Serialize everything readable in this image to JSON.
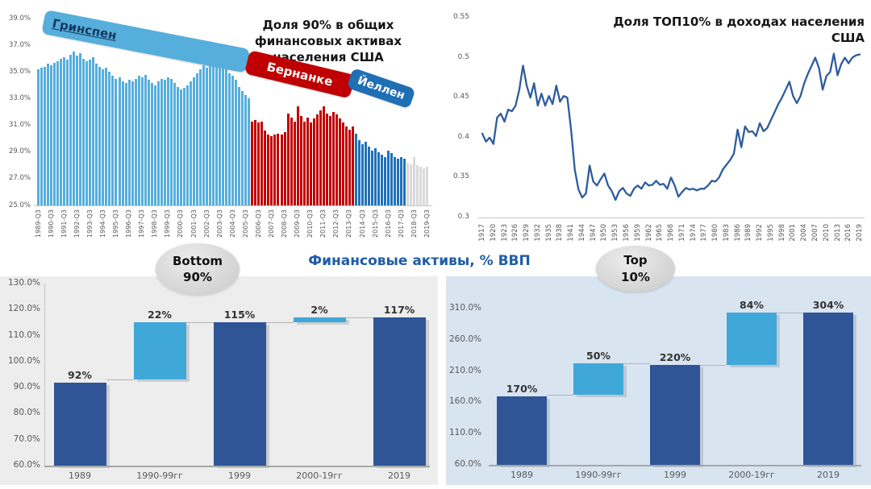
{
  "top_left": {
    "title": "Доля 90% в общих финансовых активах населения США",
    "ribbon": {
      "greenspan": "Гринспен",
      "bernanke": "Бернанке",
      "yellen": "Йеллен"
    }
  },
  "top_right": {
    "title": "Доля ТОП10% в доходах населения США"
  },
  "bottom": {
    "title": "Финансовые активы, % ВВП",
    "title_color": "#1F5CA8",
    "left_badge": {
      "line1": "Bottom",
      "line2": "90%"
    },
    "right_badge": {
      "line1": "Top",
      "line2": "10%"
    }
  },
  "colors": {
    "greenspan_bar": "#56AEDC",
    "bernanke_bar": "#C00000",
    "yellen_bar": "#1F72B8",
    "no_chair_bar": "#D9D9D9",
    "income_line": "#2E5C9E",
    "waterfall_dark": "#2F5597",
    "waterfall_light": "#3FA8D9",
    "left_panel_bg": "#EDEDED",
    "right_panel_bg": "#D9E4F1",
    "tick_text": "#595959",
    "axis_line": "#c8c8c8"
  },
  "chart_data": [
    {
      "id": "bottom90-share-of-assets",
      "type": "bar",
      "title": "Доля 90% в общих финансовых активах населения США",
      "x_first": "1989-Q3",
      "x_last": "2019-Q3",
      "x_unit": "quarter",
      "ylim": [
        25,
        39
      ],
      "yticks": [
        "25.0%",
        "27.0%",
        "29.0%",
        "31.0%",
        "33.0%",
        "35.0%",
        "37.0%",
        "39.0%"
      ],
      "xticks": [
        "1989-Q3",
        "1990-Q3",
        "1991-Q3",
        "1992-Q3",
        "1993-Q3",
        "1994-Q3",
        "1995-Q3",
        "1996-Q3",
        "1997-Q3",
        "1998-Q3",
        "1999-Q3",
        "2000-Q3",
        "2001-Q3",
        "2002-Q3",
        "2003-Q3",
        "2004-Q3",
        "2005-Q3",
        "2006-Q3",
        "2007-Q3",
        "2008-Q3",
        "2009-Q3",
        "2010-Q3",
        "2011-Q3",
        "2012-Q3",
        "2013-Q3",
        "2014-Q3",
        "2015-Q3",
        "2016-Q3",
        "2017-Q3",
        "2018-Q3",
        "2019-Q3"
      ],
      "xtick_every": 4,
      "eras": [
        {
          "label": "Гринспен",
          "count": 66,
          "color": "#56AEDC"
        },
        {
          "label": "Бернанке",
          "count": 32,
          "color": "#C00000"
        },
        {
          "label": "Йеллен",
          "count": 16,
          "color": "#1F72B8"
        },
        {
          "label": "",
          "count": 7,
          "color": "#D9D9D9"
        }
      ],
      "values": [
        35.2,
        35.3,
        35.4,
        35.6,
        35.5,
        35.7,
        35.8,
        36.0,
        36.1,
        35.9,
        36.3,
        36.5,
        36.2,
        36.4,
        36.0,
        35.8,
        35.9,
        36.1,
        35.6,
        35.4,
        35.2,
        35.3,
        35.0,
        34.7,
        34.5,
        34.6,
        34.3,
        34.2,
        34.4,
        34.3,
        34.5,
        34.7,
        34.6,
        34.8,
        34.4,
        34.2,
        34.0,
        34.3,
        34.5,
        34.4,
        34.6,
        34.5,
        34.2,
        33.9,
        33.7,
        33.8,
        34.0,
        34.3,
        34.6,
        34.9,
        35.2,
        35.5,
        35.3,
        35.6,
        35.9,
        36.1,
        35.8,
        35.5,
        35.2,
        34.9,
        34.7,
        34.4,
        33.9,
        33.6,
        33.3,
        33.0,
        31.3,
        31.4,
        31.2,
        31.3,
        30.6,
        30.3,
        30.2,
        30.3,
        30.4,
        30.3,
        30.5,
        31.9,
        31.6,
        31.3,
        32.4,
        31.7,
        31.3,
        31.6,
        31.2,
        31.5,
        31.8,
        32.1,
        32.4,
        31.9,
        31.7,
        32.0,
        31.8,
        31.5,
        31.2,
        30.9,
        30.7,
        30.9,
        30.4,
        29.9,
        29.6,
        29.8,
        29.4,
        29.1,
        29.3,
        29.0,
        28.8,
        28.6,
        29.1,
        28.9,
        28.6,
        28.5,
        28.6,
        28.5,
        28.2,
        28.1,
        28.6,
        28.0,
        27.9,
        27.8,
        27.9
      ]
    },
    {
      "id": "top10-share-of-income",
      "type": "line",
      "title": "Доля ТОП10% в доходах населения США",
      "x_start": 1917,
      "x_step": 1,
      "ylim": [
        0.3,
        0.55
      ],
      "yticks": [
        "0.3",
        "0.35",
        "0.4",
        "0.45",
        "0.5",
        "0.55"
      ],
      "xticks": [
        "1917",
        "1920",
        "1923",
        "1926",
        "1929",
        "1932",
        "1935",
        "1938",
        "1941",
        "1944",
        "1947",
        "1950",
        "1953",
        "1956",
        "1959",
        "1962",
        "1965",
        "1968",
        "1971",
        "1974",
        "1977",
        "1980",
        "1983",
        "1986",
        "1989",
        "1992",
        "1995",
        "1998",
        "2001",
        "2004",
        "2007",
        "2010",
        "2013",
        "2016",
        "2019"
      ],
      "xtick_every": 3,
      "line_color": "#2E5C9E",
      "values": [
        0.405,
        0.395,
        0.4,
        0.392,
        0.425,
        0.43,
        0.42,
        0.435,
        0.433,
        0.44,
        0.46,
        0.49,
        0.465,
        0.45,
        0.468,
        0.44,
        0.455,
        0.44,
        0.452,
        0.442,
        0.465,
        0.445,
        0.452,
        0.45,
        0.41,
        0.36,
        0.335,
        0.325,
        0.33,
        0.365,
        0.345,
        0.34,
        0.348,
        0.355,
        0.34,
        0.333,
        0.322,
        0.333,
        0.337,
        0.33,
        0.327,
        0.336,
        0.34,
        0.336,
        0.344,
        0.34,
        0.341,
        0.346,
        0.341,
        0.342,
        0.336,
        0.35,
        0.34,
        0.326,
        0.332,
        0.337,
        0.335,
        0.336,
        0.334,
        0.336,
        0.336,
        0.34,
        0.346,
        0.345,
        0.35,
        0.36,
        0.366,
        0.372,
        0.38,
        0.41,
        0.388,
        0.414,
        0.407,
        0.408,
        0.402,
        0.418,
        0.408,
        0.412,
        0.422,
        0.432,
        0.442,
        0.45,
        0.46,
        0.47,
        0.452,
        0.443,
        0.452,
        0.468,
        0.48,
        0.49,
        0.5,
        0.487,
        0.46,
        0.477,
        0.482,
        0.505,
        0.478,
        0.492,
        0.5,
        0.493,
        0.5,
        0.503,
        0.504
      ]
    },
    {
      "id": "financial-assets-gdp-bottom90",
      "type": "waterfall",
      "badge": "Bottom 90%",
      "ylim": [
        60,
        130
      ],
      "yticks": [
        "60.0%",
        "70.0%",
        "80.0%",
        "90.0%",
        "100.0%",
        "110.0%",
        "120.0%",
        "130.0%"
      ],
      "dark_color": "#2F5597",
      "light_color": "#3FA8D9",
      "panel_bg": "#EDEDED",
      "bars": [
        {
          "label": "1989",
          "value_label": "92%",
          "from": 60,
          "to": 92,
          "shade": "dark"
        },
        {
          "label": "1990-99гг",
          "value_label": "22%",
          "from": 93,
          "to": 115,
          "shade": "light"
        },
        {
          "label": "1999",
          "value_label": "115%",
          "from": 60,
          "to": 115,
          "shade": "dark"
        },
        {
          "label": "2000-19гг",
          "value_label": "2%",
          "from": 115,
          "to": 117,
          "shade": "light"
        },
        {
          "label": "2019",
          "value_label": "117%",
          "from": 60,
          "to": 117,
          "shade": "dark"
        }
      ]
    },
    {
      "id": "financial-assets-gdp-top10",
      "type": "waterfall",
      "badge": "Top 10%",
      "ylim": [
        60,
        310
      ],
      "yticks": [
        "60.0%",
        "110.0%",
        "160.0%",
        "210.0%",
        "260.0%",
        "310.0%"
      ],
      "dark_color": "#2F5597",
      "light_color": "#3FA8D9",
      "panel_bg": "#D9E4F1",
      "bars": [
        {
          "label": "1989",
          "value_label": "170%",
          "from": 60,
          "to": 170,
          "shade": "dark"
        },
        {
          "label": "1990-99гг",
          "value_label": "50%",
          "from": 172,
          "to": 222,
          "shade": "light"
        },
        {
          "label": "1999",
          "value_label": "220%",
          "from": 60,
          "to": 220,
          "shade": "dark"
        },
        {
          "label": "2000-19гг",
          "value_label": "84%",
          "from": 220,
          "to": 304,
          "shade": "light"
        },
        {
          "label": "2019",
          "value_label": "304%",
          "from": 60,
          "to": 304,
          "shade": "dark"
        }
      ]
    }
  ]
}
